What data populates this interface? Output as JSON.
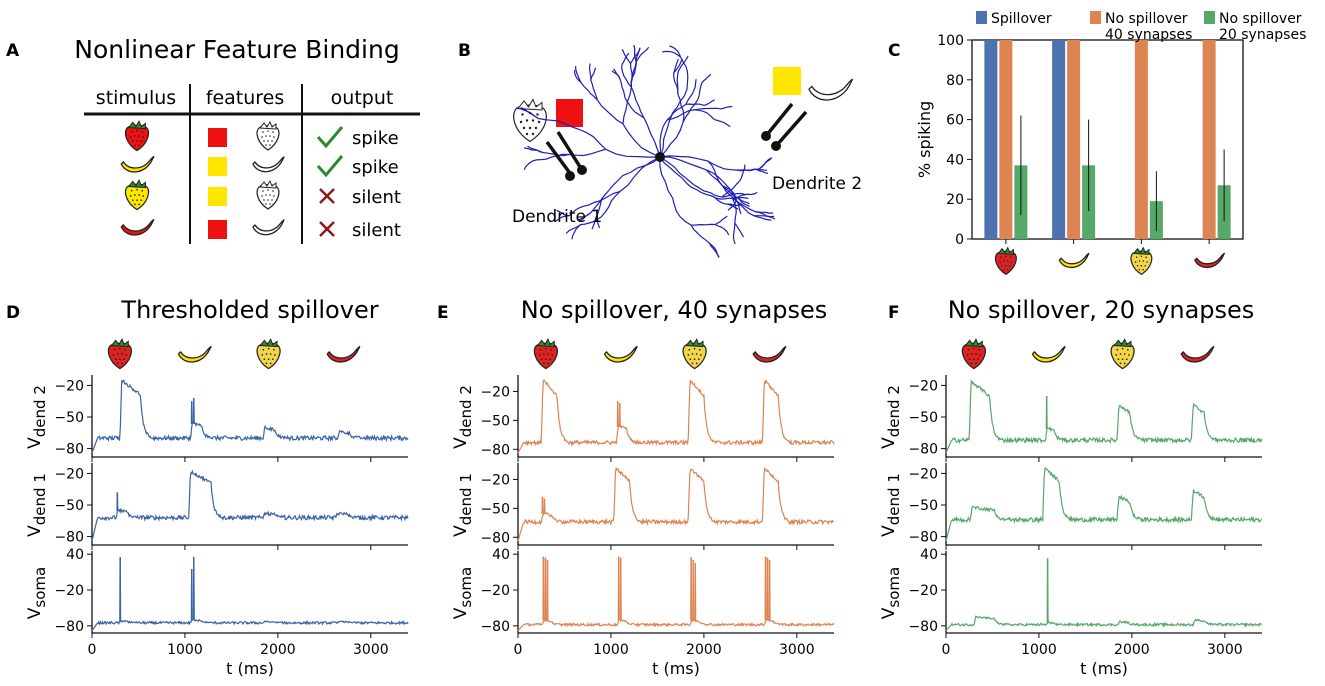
{
  "panel_labels": {
    "a": "A",
    "b": "B",
    "c": "C",
    "d": "D",
    "e": "E",
    "f": "F"
  },
  "panel_a": {
    "title": "Nonlinear Feature Binding",
    "headers": [
      "stimulus",
      "features",
      "output"
    ],
    "rows": [
      {
        "stimulus": "red strawberry",
        "color": "#ee1111",
        "shape": "strawberry",
        "result": "spike",
        "spike": true
      },
      {
        "stimulus": "yellow banana",
        "color": "#ffe600",
        "shape": "banana",
        "result": "spike",
        "spike": true
      },
      {
        "stimulus": "yellow strawberry",
        "color": "#ffe600",
        "shape": "strawberry",
        "result": "silent",
        "spike": false
      },
      {
        "stimulus": "red banana",
        "color": "#ee1111",
        "shape": "banana",
        "result": "silent",
        "spike": false
      }
    ],
    "colors": {
      "check": "#2a8a2a",
      "cross": "#8b1a1a",
      "red": "#ee1111",
      "yellow": "#ffe600"
    }
  },
  "panel_b": {
    "dendrite1_label": "Dendrite 1",
    "dendrite2_label": "Dendrite 2",
    "neuron_color": "#1f1fb4"
  },
  "chart_data": [
    {
      "id": "C",
      "type": "bar",
      "categories": [
        "red strawberry",
        "yellow banana",
        "yellow strawberry",
        "red banana"
      ],
      "series": [
        {
          "name": "Spillover",
          "color": "#4c72b0",
          "values": [
            100,
            100,
            0,
            0
          ],
          "errors": [
            0,
            0,
            0,
            0
          ]
        },
        {
          "name": "No spillover\n40 synapses",
          "color": "#dd8452",
          "values": [
            100,
            100,
            100,
            100
          ],
          "errors": [
            0,
            0,
            0,
            0
          ]
        },
        {
          "name": "No spillover\n20 synapses",
          "color": "#55a868",
          "values": [
            37,
            37,
            19,
            27
          ],
          "errors": [
            25,
            23,
            15,
            18
          ]
        }
      ],
      "ylabel": "% spiking",
      "ylim": [
        0,
        100
      ],
      "yticks": [
        0,
        20,
        40,
        60,
        80,
        100
      ],
      "legend": "top"
    },
    {
      "id": "D",
      "type": "line",
      "title": "Thresholded spillover",
      "color": "#3a63a8",
      "xlabel": "t (ms)",
      "xlim": [
        0,
        3400
      ],
      "xticks": [
        0,
        1000,
        2000,
        3000
      ],
      "stimulus_times_ms": [
        300,
        1100,
        1900,
        2700
      ],
      "rows": [
        {
          "ylabel": "V",
          "ysub": "dend 2",
          "ylim": [
            -88,
            -12
          ],
          "yticks": [
            -80,
            -50,
            -20
          ],
          "baseline": -70,
          "events": [
            {
              "t": 300,
              "peak": -15,
              "dur": 220,
              "spikes": []
            },
            {
              "t": 1060,
              "peak": -55,
              "dur": 120,
              "spikes": [
                -35,
                -32
              ]
            },
            {
              "t": 1840,
              "peak": -60,
              "dur": 130,
              "spikes": []
            },
            {
              "t": 2640,
              "peak": -64,
              "dur": 130,
              "spikes": []
            }
          ]
        },
        {
          "ylabel": "V",
          "ysub": "dend 1",
          "ylim": [
            -88,
            -12
          ],
          "yticks": [
            -80,
            -50,
            -20
          ],
          "baseline": -62,
          "events": [
            {
              "t": 260,
              "peak": -55,
              "dur": 120,
              "spikes": [
                -38
              ]
            },
            {
              "t": 1040,
              "peak": -18,
              "dur": 240,
              "spikes": []
            },
            {
              "t": 1840,
              "peak": -58,
              "dur": 120,
              "spikes": []
            },
            {
              "t": 2620,
              "peak": -58,
              "dur": 130,
              "spikes": []
            }
          ]
        },
        {
          "ylabel": "V",
          "ysub": "soma",
          "ylim": [
            -92,
            42
          ],
          "yticks": [
            -80,
            -20,
            40
          ],
          "baseline": -75,
          "events": [
            {
              "t": 290,
              "peak": -72,
              "dur": 80,
              "spikes": [
                35
              ]
            },
            {
              "t": 1060,
              "peak": -70,
              "dur": 100,
              "spikes": [
                15,
                35
              ]
            },
            {
              "t": 1840,
              "peak": -73,
              "dur": 80,
              "spikes": []
            },
            {
              "t": 2640,
              "peak": -73,
              "dur": 80,
              "spikes": []
            }
          ]
        }
      ]
    },
    {
      "id": "E",
      "type": "line",
      "title": "No spillover, 40 synapses",
      "color": "#dd8452",
      "xlabel": "t (ms)",
      "xlim": [
        0,
        3400
      ],
      "xticks": [
        0,
        1000,
        2000,
        3000
      ],
      "stimulus_times_ms": [
        300,
        1100,
        1900,
        2700
      ],
      "rows": [
        {
          "ylabel": "V",
          "ysub": "dend 2",
          "ylim": [
            -88,
            -5
          ],
          "yticks": [
            -80,
            -50,
            -20
          ],
          "baseline": -73,
          "events": [
            {
              "t": 250,
              "peak": -8,
              "dur": 170,
              "spikes": []
            },
            {
              "t": 1060,
              "peak": -55,
              "dur": 110,
              "spikes": [
                -30,
                -32
              ]
            },
            {
              "t": 1830,
              "peak": -8,
              "dur": 170,
              "spikes": []
            },
            {
              "t": 2630,
              "peak": -8,
              "dur": 170,
              "spikes": []
            }
          ]
        },
        {
          "ylabel": "V",
          "ysub": "dend 1",
          "ylim": [
            -88,
            -5
          ],
          "yticks": [
            -80,
            -50,
            -20
          ],
          "baseline": -64,
          "events": [
            {
              "t": 250,
              "peak": -55,
              "dur": 110,
              "spikes": [
                -38,
                -40
              ]
            },
            {
              "t": 1030,
              "peak": -8,
              "dur": 170,
              "spikes": []
            },
            {
              "t": 1830,
              "peak": -8,
              "dur": 170,
              "spikes": []
            },
            {
              "t": 2630,
              "peak": -8,
              "dur": 170,
              "spikes": []
            }
          ]
        },
        {
          "ylabel": "V",
          "ysub": "soma",
          "ylim": [
            -92,
            42
          ],
          "yticks": [
            -80,
            -20,
            40
          ],
          "baseline": -78,
          "events": [
            {
              "t": 260,
              "peak": -70,
              "dur": 90,
              "spikes": [
                36,
                34,
                30
              ]
            },
            {
              "t": 1070,
              "peak": -70,
              "dur": 90,
              "spikes": [
                36,
                34
              ]
            },
            {
              "t": 1850,
              "peak": -70,
              "dur": 90,
              "spikes": [
                35,
                30,
                25
              ]
            },
            {
              "t": 2650,
              "peak": -70,
              "dur": 90,
              "spikes": [
                36,
                34,
                30
              ]
            }
          ]
        }
      ]
    },
    {
      "id": "F",
      "type": "line",
      "title": "No spillover, 20 synapses",
      "color": "#55a868",
      "xlabel": "t (ms)",
      "xlim": [
        0,
        3400
      ],
      "xticks": [
        0,
        1000,
        2000,
        3000
      ],
      "stimulus_times_ms": [
        300,
        1100,
        1900,
        2700
      ],
      "rows": [
        {
          "ylabel": "V",
          "ysub": "dend 2",
          "ylim": [
            -88,
            -12
          ],
          "yticks": [
            -80,
            -50,
            -20
          ],
          "baseline": -72,
          "events": [
            {
              "t": 250,
              "peak": -16,
              "dur": 220,
              "spikes": []
            },
            {
              "t": 1070,
              "peak": -60,
              "dur": 90,
              "spikes": [
                -30
              ]
            },
            {
              "t": 1840,
              "peak": -38,
              "dur": 140,
              "spikes": []
            },
            {
              "t": 2640,
              "peak": -38,
              "dur": 140,
              "spikes": []
            }
          ]
        },
        {
          "ylabel": "V",
          "ysub": "dend 1",
          "ylim": [
            -88,
            -12
          ],
          "yticks": [
            -80,
            -50,
            -20
          ],
          "baseline": -64,
          "events": [
            {
              "t": 260,
              "peak": -52,
              "dur": 260,
              "spikes": []
            },
            {
              "t": 1040,
              "peak": -15,
              "dur": 180,
              "spikes": []
            },
            {
              "t": 1840,
              "peak": -42,
              "dur": 140,
              "spikes": []
            },
            {
              "t": 2640,
              "peak": -36,
              "dur": 140,
              "spikes": []
            }
          ]
        },
        {
          "ylabel": "V",
          "ysub": "soma",
          "ylim": [
            -92,
            42
          ],
          "yticks": [
            -80,
            -20,
            40
          ],
          "baseline": -78,
          "events": [
            {
              "t": 300,
              "peak": -65,
              "dur": 220,
              "spikes": []
            },
            {
              "t": 1080,
              "peak": -74,
              "dur": 60,
              "spikes": [
                33
              ]
            },
            {
              "t": 1850,
              "peak": -73,
              "dur": 100,
              "spikes": []
            },
            {
              "t": 2660,
              "peak": -70,
              "dur": 120,
              "spikes": []
            }
          ]
        }
      ]
    }
  ]
}
